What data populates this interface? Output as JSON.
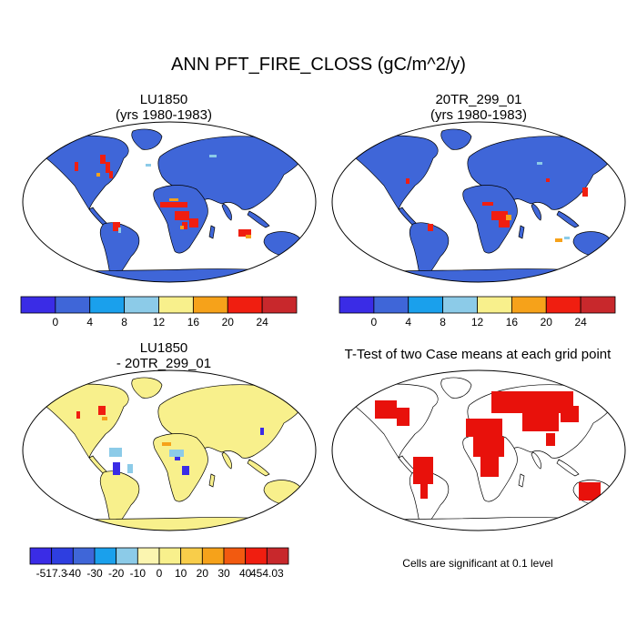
{
  "figure": {
    "title": "ANN PFT_FIRE_CLOSS (gC/m^2/y)"
  },
  "panels": [
    {
      "id": "case1",
      "title_line1": "LU1850",
      "title_line2": "(yrs 1980-1983)",
      "colorbar_colors": [
        "#3a2ce6",
        "#3f66d8",
        "#1aa0ec",
        "#8ccbe8",
        "#f8f08c",
        "#f6a21a",
        "#f01e10",
        "#c8282c"
      ],
      "colorbar_ticks": [
        "0",
        "4",
        "8",
        "12",
        "16",
        "20",
        "24"
      ]
    },
    {
      "id": "case2",
      "title_line1": "20TR_299_01",
      "title_line2": "(yrs 1980-1983)",
      "colorbar_colors": [
        "#3a2ce6",
        "#3f66d8",
        "#1aa0ec",
        "#8ccbe8",
        "#f8f08c",
        "#f6a21a",
        "#f01e10",
        "#c8282c"
      ],
      "colorbar_ticks": [
        "0",
        "4",
        "8",
        "12",
        "16",
        "20",
        "24"
      ]
    },
    {
      "id": "difference",
      "title_line1": "LU1850",
      "title_line2": "- 20TR_299_01",
      "colorbar_colors": [
        "#3a2ce6",
        "#2e3ee0",
        "#3f66d8",
        "#1aa0ec",
        "#8ccbe8",
        "#fbf5b0",
        "#f8f08c",
        "#f8cd4a",
        "#f6a21a",
        "#f25a10",
        "#f01e10",
        "#c8282c"
      ],
      "colorbar_ticks": [
        "-517.3",
        "-40",
        "-30",
        "-20",
        "-10",
        "0",
        "10",
        "20",
        "30",
        "40",
        "454.03"
      ]
    },
    {
      "id": "ttest",
      "title_line1": "T-Test of two Case means at each grid point",
      "note": "Cells are significant at 0.1 level"
    }
  ],
  "colors": {
    "ocean_bg": "#ffffff",
    "land_low": "#3f66d8",
    "land_diff": "#f8f08c",
    "significant": "#e8110b",
    "outline": "#000000"
  }
}
